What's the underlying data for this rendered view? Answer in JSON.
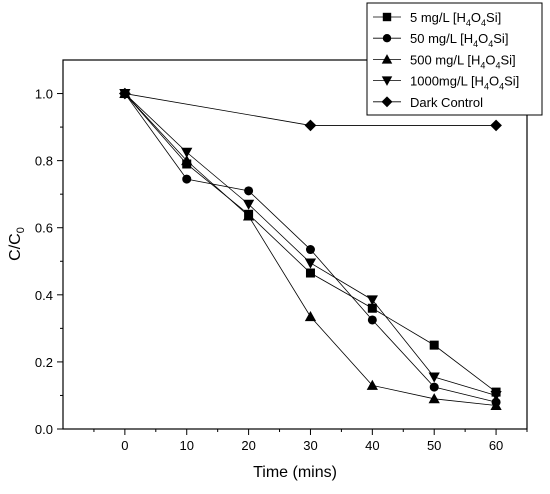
{
  "chart_data": {
    "type": "line",
    "title": "",
    "xlabel": "Time (mins)",
    "ylabel": {
      "base": "C/C",
      "sub": "0"
    },
    "xlim": [
      -10,
      65
    ],
    "ylim": [
      0.0,
      1.1
    ],
    "x_ticks": [
      0,
      10,
      20,
      30,
      40,
      50,
      60
    ],
    "y_ticks": [
      0.0,
      0.2,
      0.4,
      0.6,
      0.8,
      1.0
    ],
    "y_tick_labels": [
      "0.0",
      "0.2",
      "0.4",
      "0.6",
      "0.8",
      "1.0"
    ],
    "grid": false,
    "legend_position": "top-right",
    "series": [
      {
        "name": {
          "pre": "5 mg/L [H",
          "s1": "4",
          "mid": "O",
          "s2": "4",
          "post": "Si]"
        },
        "marker": "square",
        "x": [
          0,
          10,
          20,
          30,
          40,
          50,
          60
        ],
        "y": [
          1.0,
          0.79,
          0.64,
          0.465,
          0.36,
          0.25,
          0.11
        ]
      },
      {
        "name": {
          "pre": "50 mg/L [H",
          "s1": "4",
          "mid": "O",
          "s2": "4",
          "post": "Si]"
        },
        "marker": "circle",
        "x": [
          0,
          10,
          20,
          30,
          40,
          50,
          60
        ],
        "y": [
          1.0,
          0.745,
          0.71,
          0.535,
          0.325,
          0.125,
          0.08
        ]
      },
      {
        "name": {
          "pre": "500 mg/L [H",
          "s1": "4",
          "mid": "O",
          "s2": "4",
          "post": "Si]"
        },
        "marker": "triangle-up",
        "x": [
          0,
          10,
          20,
          30,
          40,
          50,
          60
        ],
        "y": [
          1.0,
          0.8,
          0.635,
          0.335,
          0.13,
          0.09,
          0.07
        ]
      },
      {
        "name": {
          "pre": "1000mg/L [H",
          "s1": "4",
          "mid": "O",
          "s2": "4",
          "post": "Si]"
        },
        "marker": "triangle-down",
        "x": [
          0,
          10,
          20,
          30,
          40,
          50,
          60
        ],
        "y": [
          1.0,
          0.825,
          0.67,
          0.495,
          0.385,
          0.155,
          0.1
        ]
      },
      {
        "name": {
          "pre": "Dark Control",
          "s1": "",
          "mid": "",
          "s2": "",
          "post": ""
        },
        "marker": "diamond",
        "x": [
          0,
          30,
          60
        ],
        "y": [
          1.0,
          0.905,
          0.905
        ]
      }
    ]
  }
}
